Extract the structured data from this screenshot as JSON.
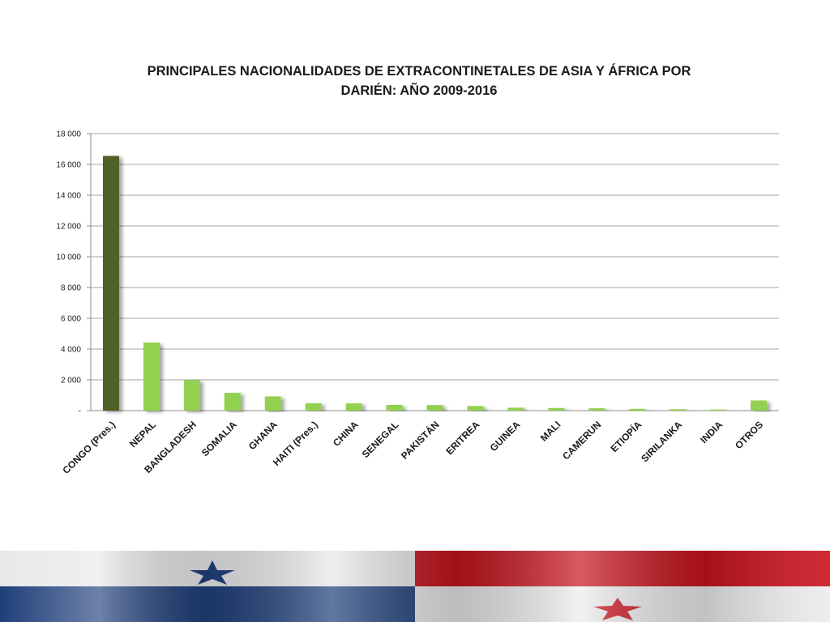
{
  "slide": {
    "title_lines": [
      "PRINCIPALES NACIONALIDADES DE EXTRACONTINETALES DE ASIA Y ÁFRICA POR",
      "DARIÉN: AÑO 2009-2016"
    ]
  },
  "chart_data": {
    "type": "bar",
    "title": "PRINCIPALES NACIONALIDADES DE EXTRACONTINETALES DE ASIA Y ÁFRICA POR DARIÉN: AÑO 2009-2016",
    "xlabel": "",
    "ylabel": "",
    "ylim": [
      0,
      18000
    ],
    "y_ticks": [
      0,
      2000,
      4000,
      6000,
      8000,
      10000,
      12000,
      14000,
      16000,
      18000
    ],
    "y_tick_labels": [
      "-",
      "2 000",
      "4 000",
      "6 000",
      "8 000",
      "10 000",
      "12 000",
      "14 000",
      "16 000",
      "18 000"
    ],
    "grid": true,
    "legend": "none",
    "categories": [
      "CONGO (Pres.)",
      "NEPAL",
      "BANGLADESH",
      "SOMALIA",
      "GHANA",
      "HAITI (Pres.)",
      "CHINA",
      "SENEGAL",
      "PAKISTÁN",
      "ERITREA",
      "GUINEA",
      "MALI",
      "CAMERUN",
      "ETIOPÍA",
      "SIRILANKA",
      "INDIA",
      "OTROS"
    ],
    "values": [
      16550,
      4420,
      1980,
      1150,
      920,
      480,
      470,
      370,
      360,
      300,
      190,
      170,
      150,
      110,
      90,
      70,
      660
    ],
    "colors": {
      "highlight": "#4f6228",
      "bar": "#92d050",
      "grid": "#a6a6a6",
      "axis": "#8c8c8c",
      "text": "#1a1a1a"
    }
  }
}
